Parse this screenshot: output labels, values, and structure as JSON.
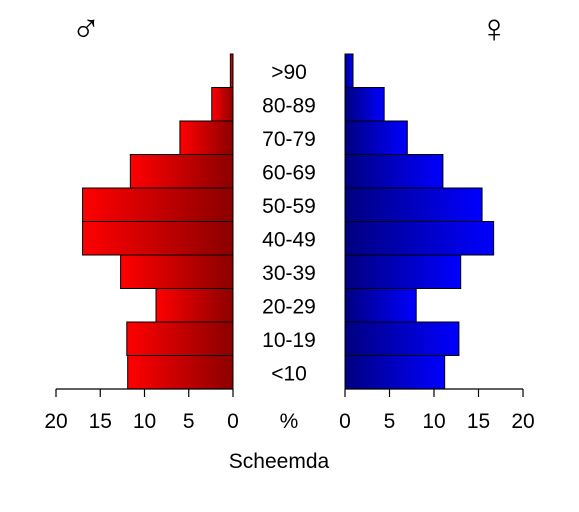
{
  "chart_data": {
    "type": "bar",
    "orientation": "population-pyramid",
    "categories": [
      "<10",
      "10-19",
      "20-29",
      "30-39",
      "40-49",
      "50-59",
      "60-69",
      "70-79",
      "80-89",
      ">90"
    ],
    "series": [
      {
        "name": "♂",
        "values": [
          11.9,
          12.0,
          8.7,
          12.7,
          17.0,
          17.0,
          11.6,
          6.0,
          2.4,
          0.3
        ],
        "color_light": "#ff0000",
        "color_dark": "#8b0000"
      },
      {
        "name": "♀",
        "values": [
          11.2,
          12.8,
          8.0,
          13.0,
          16.7,
          15.4,
          11.0,
          7.0,
          4.4,
          0.9
        ],
        "color_light": "#0000ff",
        "color_dark": "#000080"
      }
    ],
    "xlim": [
      0,
      20
    ],
    "ticks": [
      0,
      5,
      10,
      15,
      20
    ],
    "tick_labels_left": [
      "20",
      "15",
      "10",
      "5",
      "0"
    ],
    "tick_labels_right": [
      "0",
      "5",
      "10",
      "15",
      "20"
    ],
    "center_axis_label": "%",
    "xlabel": "Scheemda",
    "title": "",
    "grid": false
  }
}
